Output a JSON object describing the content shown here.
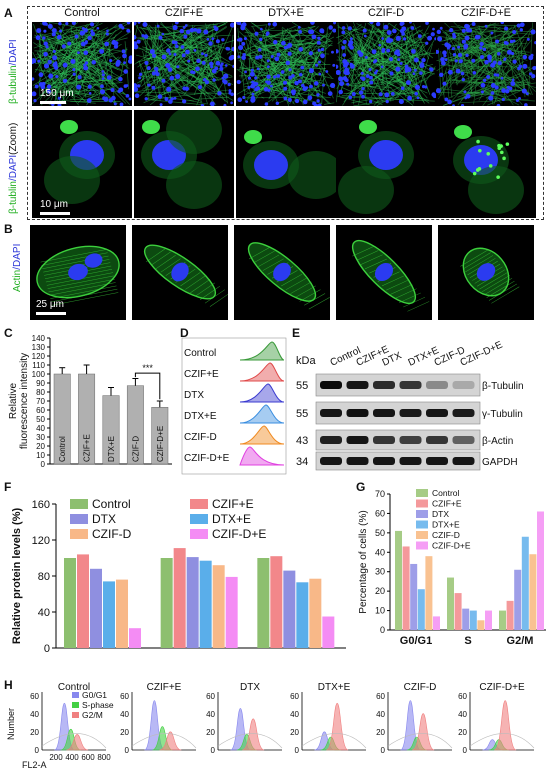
{
  "panels": {
    "A": "A",
    "B": "B",
    "C": "C",
    "D": "D",
    "E": "E",
    "F": "F",
    "G": "G",
    "H": "H"
  },
  "panelA": {
    "columns": [
      "Control",
      "CZIF+E",
      "DTX+E",
      "CZIF-D",
      "CZIF-D+E"
    ],
    "row1_label_green": "β-tubulin",
    "row1_label_blue": "/DAPI",
    "row2_label_green": "β-tublin",
    "row2_label_blue": "/DAPI",
    "row2_label_zoom": "(Zoom)",
    "scale1": "150 μm",
    "scale2": "10 μm"
  },
  "panelB": {
    "label_green": "Actin",
    "label_blue": "/DAPI",
    "scale": "25 μm"
  },
  "panelC": {
    "chart_data": {
      "type": "bar",
      "categories": [
        "Control",
        "CZIF+E",
        "DTX+E",
        "CZIF-D",
        "CZIF-D+E"
      ],
      "values": [
        100,
        100,
        76,
        87,
        63
      ],
      "errors": [
        7,
        10,
        9,
        8,
        7
      ],
      "ylabel": "Relative fluorescence intensity",
      "ylim": [
        0,
        140
      ],
      "yticks": [
        0,
        10,
        20,
        30,
        40,
        50,
        60,
        70,
        80,
        90,
        100,
        110,
        120,
        130,
        140
      ],
      "significance": "***",
      "bar_color": "#b0b0b0"
    }
  },
  "panelD": {
    "labels": [
      "Control",
      "CZIF+E",
      "DTX",
      "DTX+E",
      "CZIF-D",
      "CZIF-D+E"
    ],
    "colors": [
      "#3a9a3a",
      "#e04a4a",
      "#3b3bd0",
      "#3a8ee0",
      "#f08a20",
      "#e040e0"
    ]
  },
  "panelE": {
    "kda_label": "kDa",
    "lanes": [
      "Control",
      "CZIF+E",
      "DTX",
      "DTX+E",
      "CZIF-D",
      "CZIF-D+E"
    ],
    "kda": [
      "55",
      "55",
      "43",
      "34"
    ],
    "proteins": [
      "β-Tubulin",
      "γ-Tubulin",
      "β-Actin",
      "GAPDH"
    ]
  },
  "panelF": {
    "chart_data": {
      "type": "bar",
      "ylabel": "Relative protein levels (%)",
      "ylim": [
        0,
        160
      ],
      "yticks": [
        0,
        40,
        80,
        120,
        160
      ],
      "groups": 3,
      "series": [
        {
          "name": "Control",
          "color": "#8dbf6f",
          "values": [
            100,
            100,
            100
          ]
        },
        {
          "name": "CZIF+E",
          "color": "#f2878a",
          "values": [
            104,
            111,
            102
          ]
        },
        {
          "name": "DTX",
          "color": "#8f8fe0",
          "values": [
            88,
            101,
            86
          ]
        },
        {
          "name": "DTX+E",
          "color": "#5aaeea",
          "values": [
            74,
            97,
            73
          ]
        },
        {
          "name": "CZIF-D",
          "color": "#f8b888",
          "values": [
            76,
            92,
            77
          ]
        },
        {
          "name": "CZIF-D+E",
          "color": "#f48cf4",
          "values": [
            22,
            79,
            35
          ]
        }
      ]
    }
  },
  "panelG": {
    "chart_data": {
      "type": "bar",
      "categories": [
        "G0/G1",
        "S",
        "G2/M"
      ],
      "ylabel": "Percentage of cells (%)",
      "ylim": [
        0,
        70
      ],
      "yticks": [
        0,
        10,
        20,
        30,
        40,
        50,
        60,
        70
      ],
      "series": [
        {
          "name": "Control",
          "color": "#a6cc86",
          "values": [
            51,
            27,
            10
          ]
        },
        {
          "name": "CZIF+E",
          "color": "#f4999b",
          "values": [
            43,
            19,
            15
          ]
        },
        {
          "name": "DTX",
          "color": "#9e9ee8",
          "values": [
            34,
            11,
            31
          ]
        },
        {
          "name": "DTX+E",
          "color": "#77bbee",
          "values": [
            21,
            10,
            48
          ]
        },
        {
          "name": "CZIF-D",
          "color": "#f9c291",
          "values": [
            38,
            5,
            39
          ]
        },
        {
          "name": "CZIF-D+E",
          "color": "#f59ef5",
          "values": [
            7,
            10,
            61
          ]
        }
      ]
    }
  },
  "panelH": {
    "titles": [
      "Control",
      "CZIF+E",
      "DTX",
      "DTX+E",
      "CZIF-D",
      "CZIF-D+E"
    ],
    "ylabel": "Number",
    "xlabel": "FL2-A",
    "yticks": [
      "0",
      "20",
      "40",
      "60"
    ],
    "xticks": [
      "200",
      "400",
      "600",
      "800"
    ],
    "legend": [
      "G0/G1",
      "S-phase",
      "G2/M"
    ]
  }
}
